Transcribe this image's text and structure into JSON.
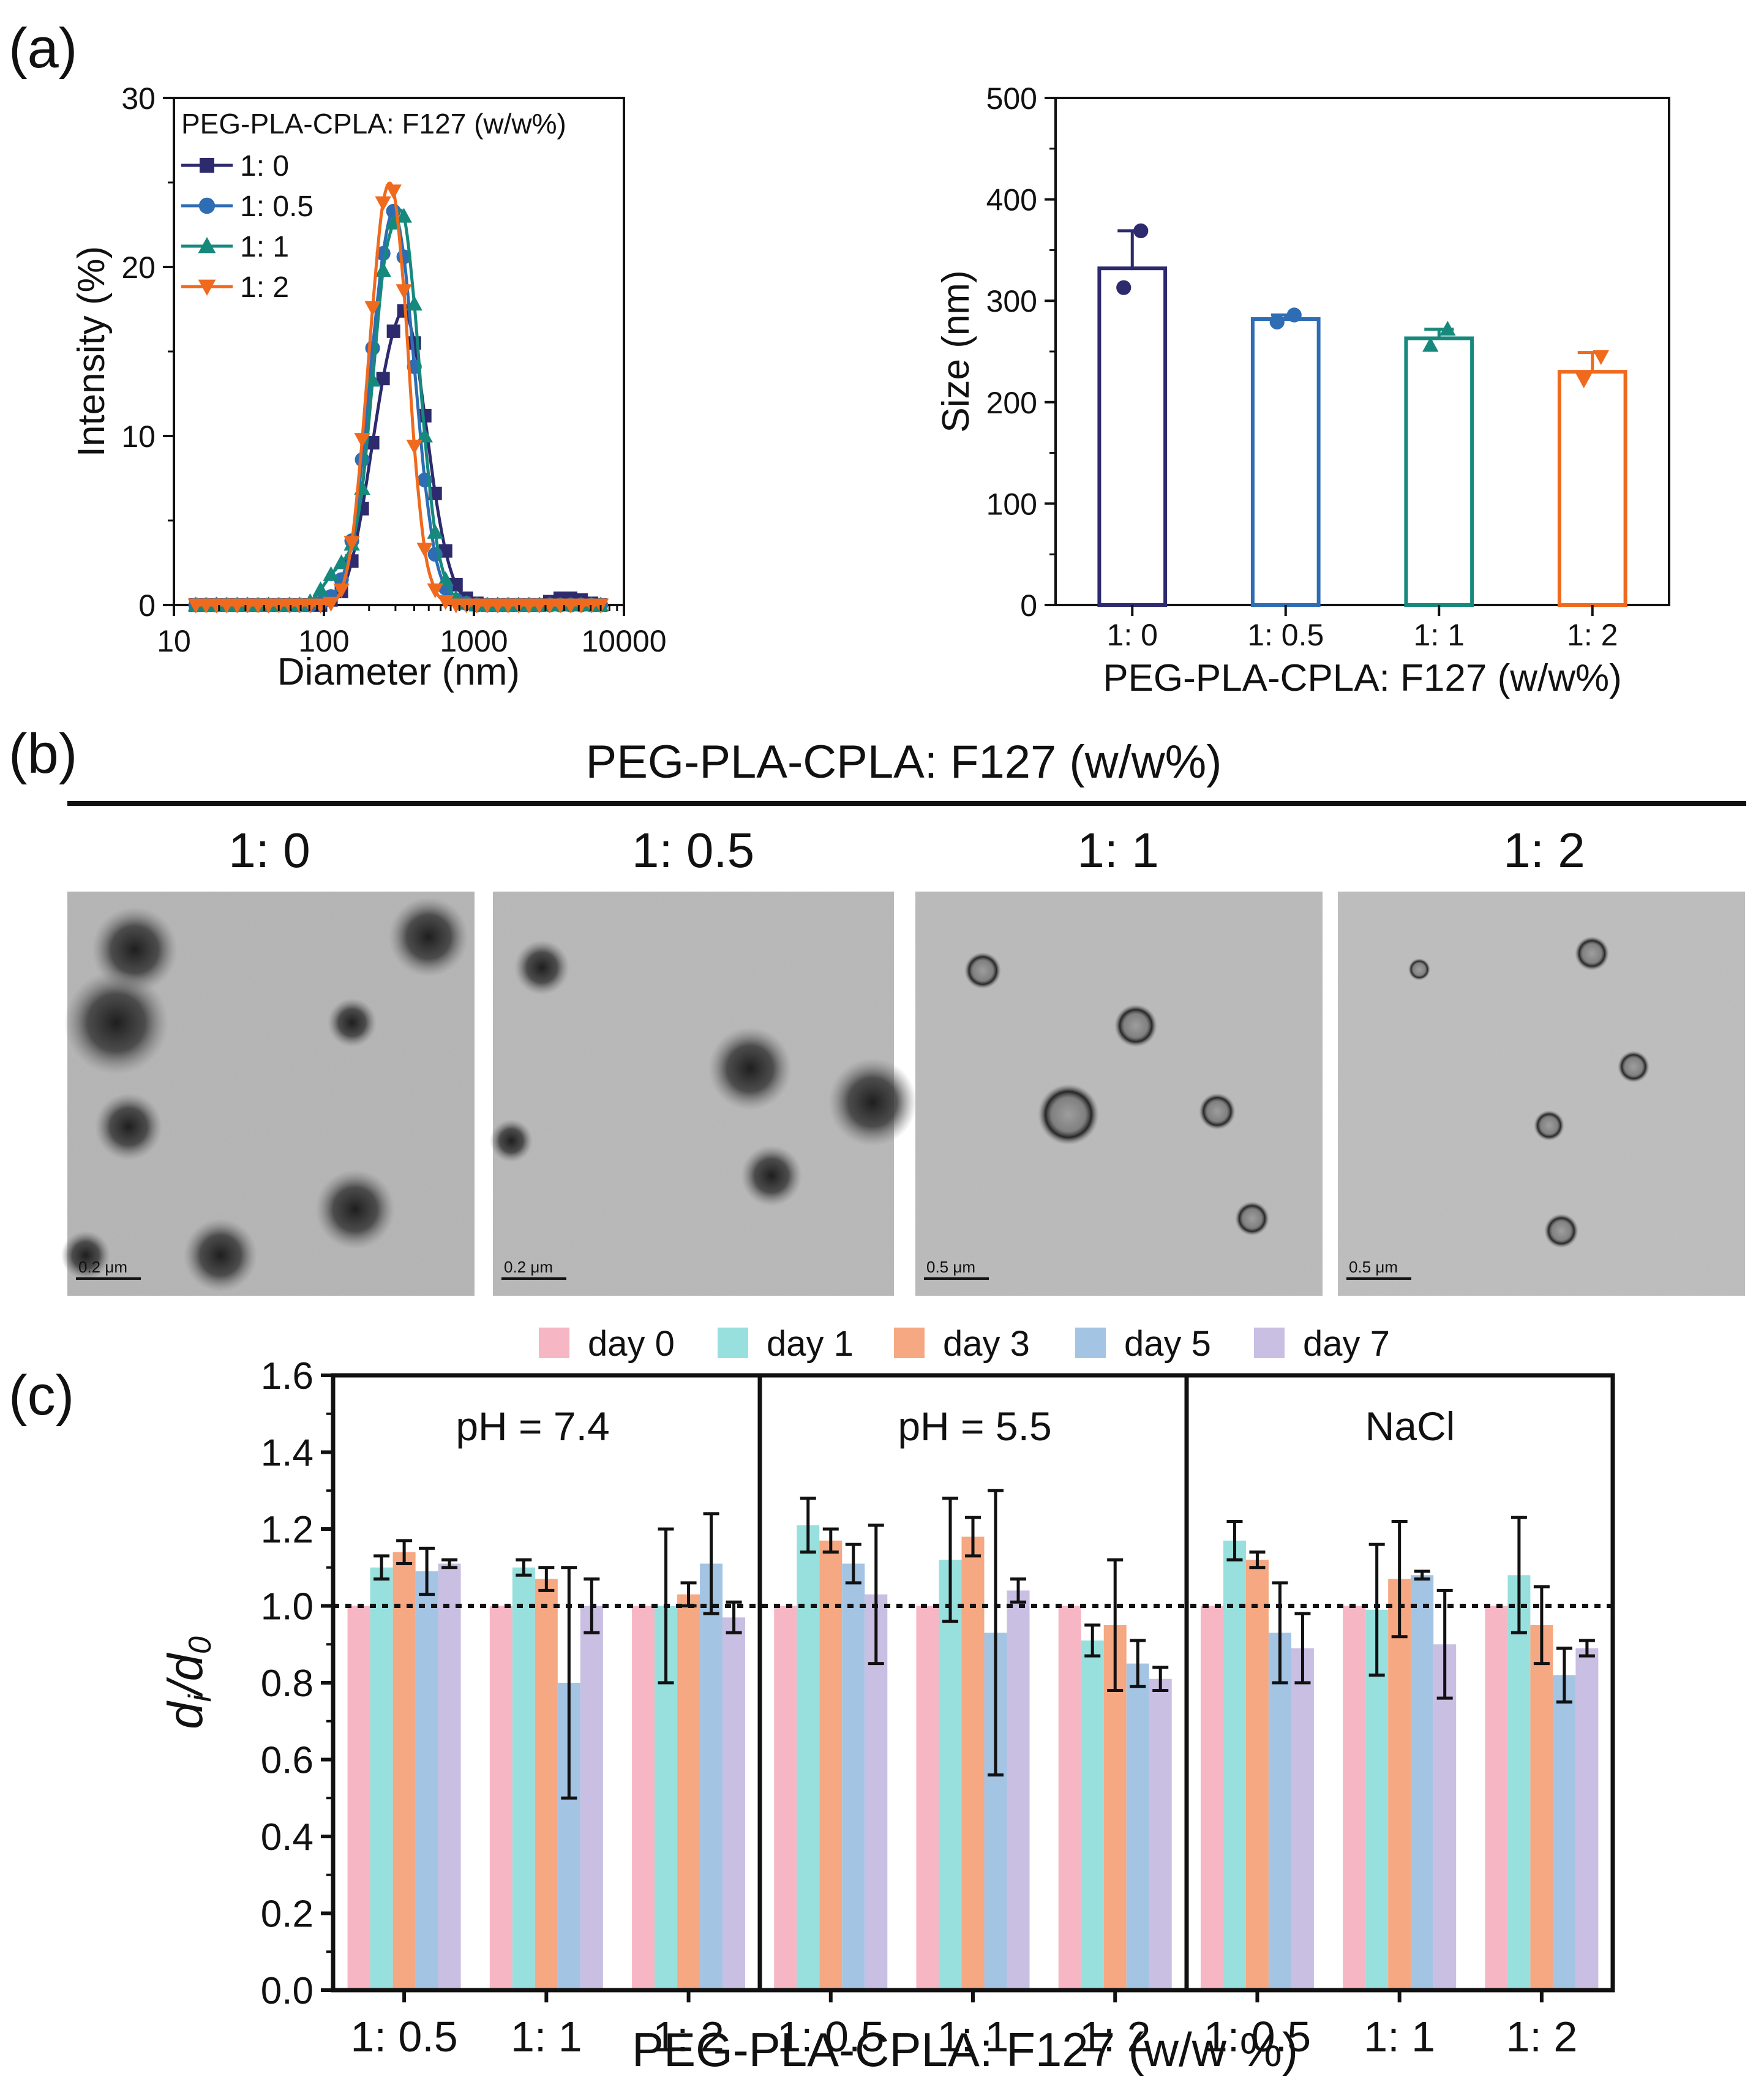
{
  "panel_labels": {
    "a": "(a)",
    "b": "(b)",
    "c": "(c)"
  },
  "colors": {
    "s0": "#2d2a6e",
    "s1": "#2e6db4",
    "s2": "#16897d",
    "s3": "#f06a1d",
    "day0": "#f7b6c4",
    "day1": "#98e0de",
    "day3": "#f5a882",
    "day5": "#a4c4e4",
    "day7": "#c9bfe3"
  },
  "chart_data": [
    {
      "type": "line",
      "title": "",
      "xlabel": "Diameter (nm)",
      "ylabel": "Intensity (%)",
      "xscale": "log",
      "xlim": [
        10,
        10000
      ],
      "ylim": [
        0,
        30
      ],
      "xticks": [
        10,
        100,
        1000,
        10000
      ],
      "xtick_labels": [
        "10",
        "100",
        "1000",
        "10000"
      ],
      "yticks": [
        0,
        10,
        20,
        30
      ],
      "ytick_labels": [
        "0",
        "10",
        "20",
        "30"
      ],
      "legend_title": "PEG-PLA-CPLA: F127 (w/w%)",
      "legend_position": "top-left",
      "x": [
        14,
        16.4,
        19.2,
        22.5,
        26.4,
        31,
        36.4,
        42.7,
        50.1,
        58.8,
        69,
        80.9,
        95,
        111.5,
        130.8,
        153.5,
        180.1,
        211.3,
        248,
        291,
        341.5,
        400.7,
        470.2,
        551.8,
        647.5,
        759.8,
        891.6,
        1046.3,
        1227.8,
        1440.7,
        1690.6,
        1983.9,
        2328,
        2731.8,
        3205.6,
        3761.6,
        4414,
        5179.6,
        6077.9,
        7000
      ],
      "series": [
        {
          "name": "1: 0",
          "marker": "square",
          "color": "#2d2a6e",
          "values": [
            0,
            0,
            0,
            0,
            0,
            0,
            0,
            0,
            0,
            0,
            0,
            0,
            0,
            0.3,
            0.8,
            2.6,
            5.7,
            9.6,
            13.4,
            16.2,
            17.4,
            15.5,
            11.2,
            6.6,
            3.2,
            1.2,
            0.4,
            0.1,
            0,
            0,
            0,
            0,
            0,
            0,
            0.2,
            0.4,
            0.4,
            0.3,
            0.1,
            0
          ]
        },
        {
          "name": "1: 0.5",
          "marker": "circle",
          "color": "#2e6db4",
          "values": [
            0,
            0,
            0,
            0,
            0,
            0,
            0,
            0,
            0,
            0,
            0,
            0,
            0.1,
            0.5,
            1.5,
            3.8,
            8.6,
            15.2,
            20.8,
            23.3,
            20.6,
            14.1,
            7.4,
            3,
            1,
            0.3,
            0.1,
            0,
            0,
            0,
            0,
            0,
            0,
            0,
            0,
            0,
            0,
            0,
            0,
            0
          ]
        },
        {
          "name": "1: 1",
          "marker": "triangle-up",
          "color": "#16897d",
          "values": [
            0,
            0,
            0,
            0,
            0,
            0,
            0,
            0,
            0,
            0,
            0,
            0.2,
            0.9,
            1.8,
            2.5,
            3.6,
            6.9,
            13.3,
            19.8,
            22.6,
            23,
            17.8,
            10,
            4.3,
            1.5,
            0.4,
            0.1,
            0,
            0,
            0,
            0,
            0,
            0,
            0,
            0,
            0,
            0,
            0,
            0,
            0
          ]
        },
        {
          "name": "1: 2",
          "marker": "triangle-down",
          "color": "#f06a1d",
          "values": [
            0,
            0,
            0,
            0,
            0,
            0,
            0,
            0,
            0,
            0,
            0,
            0,
            0,
            0.1,
            0.9,
            3.7,
            9.8,
            17.6,
            23.8,
            24.5,
            18.6,
            9.4,
            3.3,
            0.9,
            0.2,
            0,
            0,
            0,
            0,
            0,
            0,
            0,
            0,
            0,
            0,
            0,
            0,
            0,
            0,
            0
          ]
        }
      ]
    },
    {
      "type": "bar",
      "title": "",
      "xlabel": "PEG-PLA-CPLA: F127 (w/w%)",
      "ylabel": "Size (nm)",
      "ylim": [
        0,
        500
      ],
      "yticks": [
        0,
        100,
        200,
        300,
        400,
        500
      ],
      "ytick_labels": [
        "0",
        "100",
        "200",
        "300",
        "400",
        "500"
      ],
      "categories": [
        "1: 0",
        "1: 0.5",
        "1: 1",
        "1: 2"
      ],
      "values": [
        332,
        282,
        263,
        230
      ],
      "error_upper": [
        369,
        286,
        272,
        249
      ],
      "points": [
        [
          369,
          313
        ],
        [
          286,
          279
        ],
        [
          272,
          256
        ],
        [
          245,
          222
        ]
      ],
      "colors": [
        "#2d2a6e",
        "#2e6db4",
        "#16897d",
        "#f06a1d"
      ]
    },
    {
      "type": "bar",
      "title": "",
      "xlabel": "PEG-PLA-CPLA: F127 (w/w %)",
      "ylabel": "di/d0",
      "ylim": [
        0,
        1.6
      ],
      "yticks": [
        0,
        0.2,
        0.4,
        0.6,
        0.8,
        1.0,
        1.2,
        1.4,
        1.6
      ],
      "ytick_labels": [
        "0.0",
        "0.2",
        "0.4",
        "0.6",
        "0.8",
        "1.0",
        "1.2",
        "1.4",
        "1.6"
      ],
      "reference_line": 1.0,
      "categories": [
        "1: 0.5",
        "1: 1",
        "1: 2"
      ],
      "legend": [
        "day 0",
        "day 1",
        "day 3",
        "day 5",
        "day 7"
      ],
      "legend_position": "top",
      "groups": [
        {
          "label": "pH = 7.4",
          "values": [
            [
              1,
              1.1,
              1.14,
              1.09,
              1.11
            ],
            [
              1,
              1.1,
              1.07,
              0.8,
              1
            ],
            [
              1,
              1,
              1.03,
              1.11,
              0.97
            ]
          ],
          "errors": [
            [
              0,
              0.03,
              0.03,
              0.06,
              0.01
            ],
            [
              0,
              0.02,
              0.03,
              0.3,
              0.07
            ],
            [
              0,
              0.2,
              0.03,
              0.13,
              0.04
            ]
          ]
        },
        {
          "label": "pH = 5.5",
          "values": [
            [
              1,
              1.21,
              1.17,
              1.11,
              1.03
            ],
            [
              1,
              1.12,
              1.18,
              0.93,
              1.04
            ],
            [
              1,
              0.91,
              0.95,
              0.85,
              0.81
            ]
          ],
          "errors": [
            [
              0,
              0.07,
              0.03,
              0.05,
              0.18
            ],
            [
              0,
              0.16,
              0.05,
              0.37,
              0.03
            ],
            [
              0,
              0.04,
              0.17,
              0.06,
              0.03
            ]
          ]
        },
        {
          "label": "NaCl",
          "values": [
            [
              1,
              1.17,
              1.12,
              0.93,
              0.89
            ],
            [
              1,
              0.99,
              1.07,
              1.08,
              0.9
            ],
            [
              1,
              1.08,
              0.95,
              0.82,
              0.89
            ]
          ],
          "errors": [
            [
              0,
              0.05,
              0.02,
              0.13,
              0.09
            ],
            [
              0,
              0.17,
              0.15,
              0.01,
              0.14
            ],
            [
              0,
              0.15,
              0.1,
              0.07,
              0.02
            ]
          ]
        }
      ]
    }
  ],
  "tem": {
    "header": "PEG-PLA-CPLA: F127 (w/w%)",
    "images": [
      {
        "label": "1: 0",
        "scale": "0.2 μm"
      },
      {
        "label": "1: 0.5",
        "scale": "0.2 μm"
      },
      {
        "label": "1: 1",
        "scale": "0.5 μm"
      },
      {
        "label": "1: 2",
        "scale": "0.5 μm"
      }
    ]
  }
}
